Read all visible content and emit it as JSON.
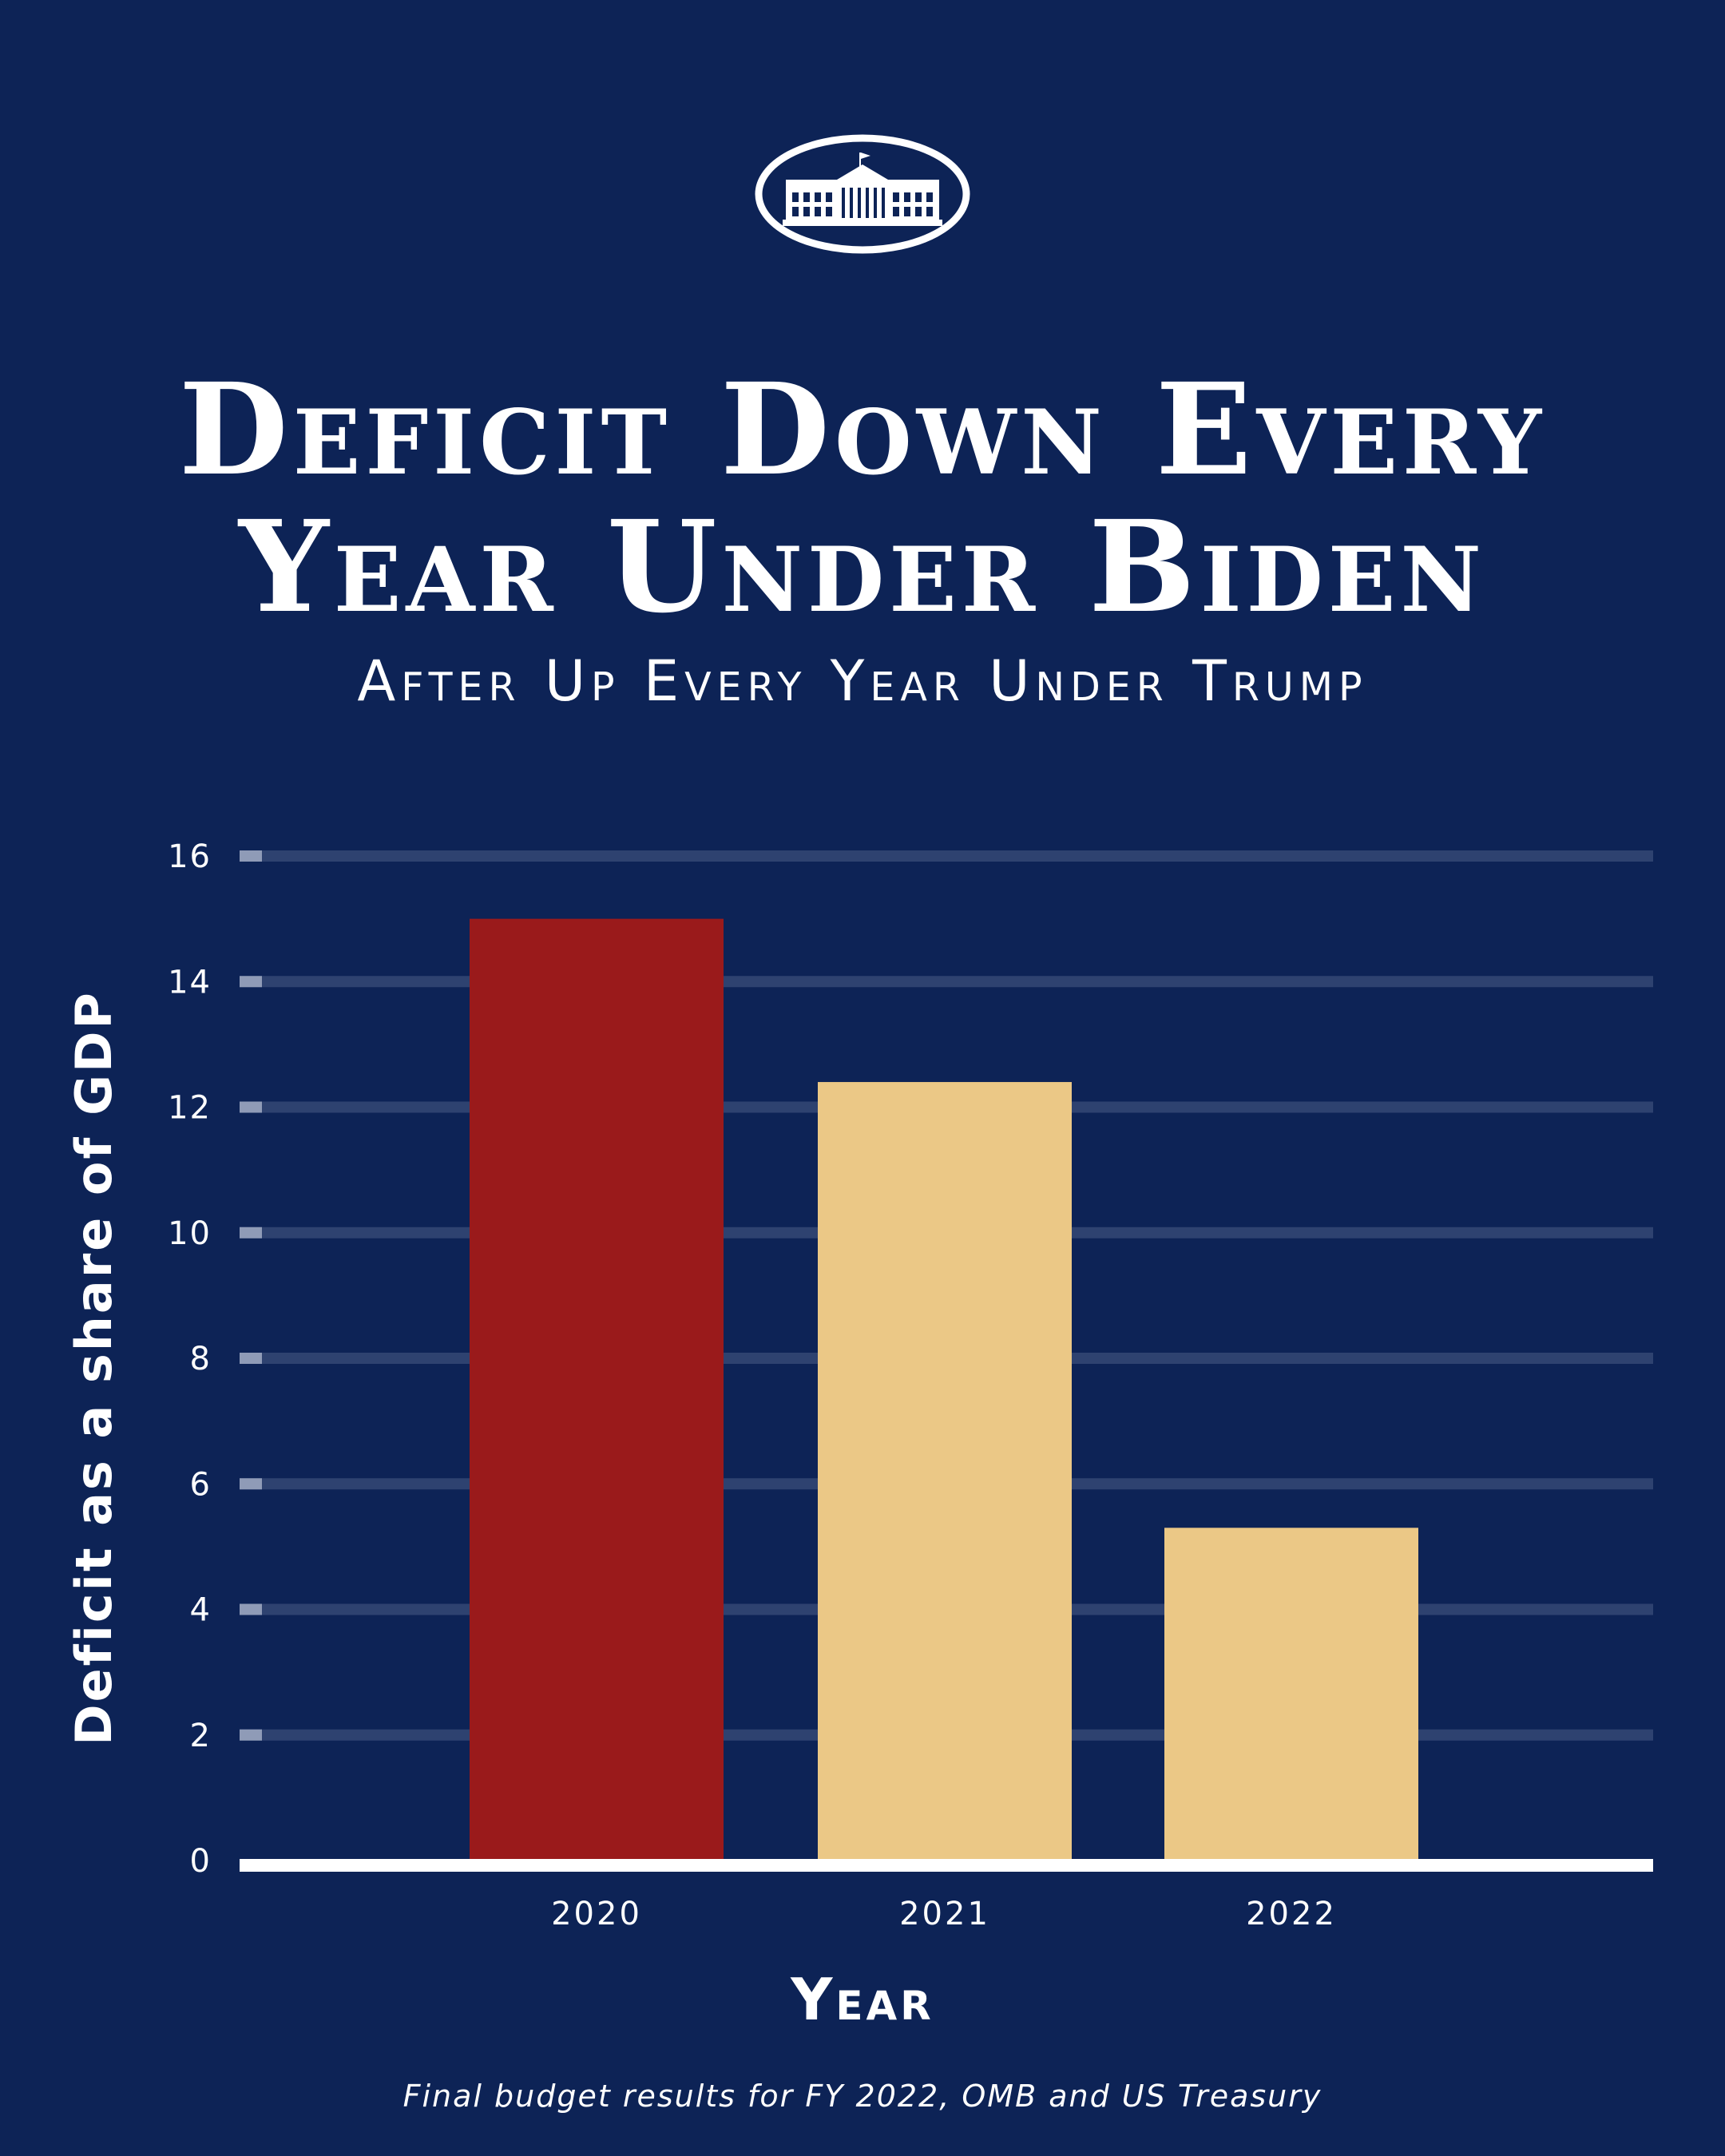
{
  "header": {
    "logo": "white-house-logo",
    "title_line1": "Deficit Down Every",
    "title_line2": "Year Under Biden",
    "subtitle": "After Up Every Year Under Trump"
  },
  "footer": {
    "source": "Final budget results for FY 2022, OMB and US Treasury"
  },
  "colors": {
    "background": "#0d2356",
    "gridline": "#2e4270",
    "tick_mark": "#8f9bb7",
    "baseline": "#ffffff",
    "text": "#ffffff",
    "trump_bar": "#9a1a1b",
    "biden_bar": "#ebc886"
  },
  "chart_data": {
    "type": "bar",
    "xlabel": "Year",
    "ylabel": "Deficit as a share of GDP",
    "categories": [
      "2020",
      "2021",
      "2022"
    ],
    "values": [
      15.0,
      12.4,
      5.3
    ],
    "bar_colors": [
      "#9a1a1b",
      "#ebc886",
      "#ebc886"
    ],
    "ylim": [
      0,
      16
    ],
    "yticks": [
      "0",
      "2",
      "4",
      "6",
      "8",
      "10",
      "12",
      "14",
      "16"
    ],
    "grid": true
  }
}
